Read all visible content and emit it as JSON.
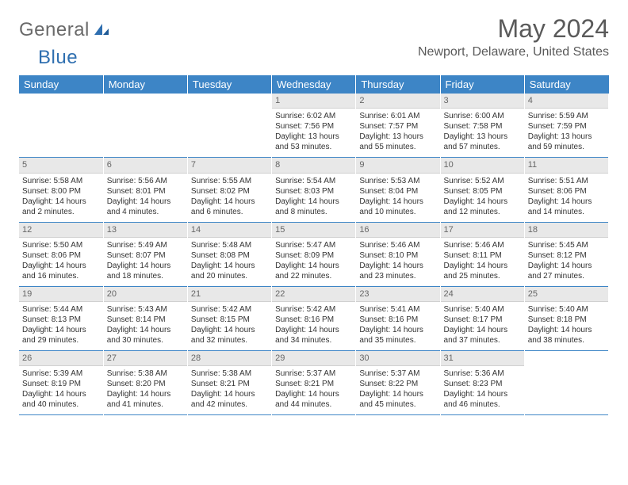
{
  "logo": {
    "general": "General",
    "blue": "Blue"
  },
  "title": "May 2024",
  "location": "Newport, Delaware, United States",
  "weekdays": [
    "Sunday",
    "Monday",
    "Tuesday",
    "Wednesday",
    "Thursday",
    "Friday",
    "Saturday"
  ],
  "colors": {
    "header_bg": "#3d85c6",
    "header_text": "#ffffff",
    "daynum_bg": "#e8e8e8",
    "row_border": "#3d85c6",
    "logo_general": "#6a6a6a",
    "logo_blue": "#2f6fb0",
    "title_color": "#5a5a5a"
  },
  "weeks": [
    [
      {
        "empty": true
      },
      {
        "empty": true
      },
      {
        "empty": true
      },
      {
        "day": "1",
        "sunrise": "Sunrise: 6:02 AM",
        "sunset": "Sunset: 7:56 PM",
        "daylight": "Daylight: 13 hours and 53 minutes."
      },
      {
        "day": "2",
        "sunrise": "Sunrise: 6:01 AM",
        "sunset": "Sunset: 7:57 PM",
        "daylight": "Daylight: 13 hours and 55 minutes."
      },
      {
        "day": "3",
        "sunrise": "Sunrise: 6:00 AM",
        "sunset": "Sunset: 7:58 PM",
        "daylight": "Daylight: 13 hours and 57 minutes."
      },
      {
        "day": "4",
        "sunrise": "Sunrise: 5:59 AM",
        "sunset": "Sunset: 7:59 PM",
        "daylight": "Daylight: 13 hours and 59 minutes."
      }
    ],
    [
      {
        "day": "5",
        "sunrise": "Sunrise: 5:58 AM",
        "sunset": "Sunset: 8:00 PM",
        "daylight": "Daylight: 14 hours and 2 minutes."
      },
      {
        "day": "6",
        "sunrise": "Sunrise: 5:56 AM",
        "sunset": "Sunset: 8:01 PM",
        "daylight": "Daylight: 14 hours and 4 minutes."
      },
      {
        "day": "7",
        "sunrise": "Sunrise: 5:55 AM",
        "sunset": "Sunset: 8:02 PM",
        "daylight": "Daylight: 14 hours and 6 minutes."
      },
      {
        "day": "8",
        "sunrise": "Sunrise: 5:54 AM",
        "sunset": "Sunset: 8:03 PM",
        "daylight": "Daylight: 14 hours and 8 minutes."
      },
      {
        "day": "9",
        "sunrise": "Sunrise: 5:53 AM",
        "sunset": "Sunset: 8:04 PM",
        "daylight": "Daylight: 14 hours and 10 minutes."
      },
      {
        "day": "10",
        "sunrise": "Sunrise: 5:52 AM",
        "sunset": "Sunset: 8:05 PM",
        "daylight": "Daylight: 14 hours and 12 minutes."
      },
      {
        "day": "11",
        "sunrise": "Sunrise: 5:51 AM",
        "sunset": "Sunset: 8:06 PM",
        "daylight": "Daylight: 14 hours and 14 minutes."
      }
    ],
    [
      {
        "day": "12",
        "sunrise": "Sunrise: 5:50 AM",
        "sunset": "Sunset: 8:06 PM",
        "daylight": "Daylight: 14 hours and 16 minutes."
      },
      {
        "day": "13",
        "sunrise": "Sunrise: 5:49 AM",
        "sunset": "Sunset: 8:07 PM",
        "daylight": "Daylight: 14 hours and 18 minutes."
      },
      {
        "day": "14",
        "sunrise": "Sunrise: 5:48 AM",
        "sunset": "Sunset: 8:08 PM",
        "daylight": "Daylight: 14 hours and 20 minutes."
      },
      {
        "day": "15",
        "sunrise": "Sunrise: 5:47 AM",
        "sunset": "Sunset: 8:09 PM",
        "daylight": "Daylight: 14 hours and 22 minutes."
      },
      {
        "day": "16",
        "sunrise": "Sunrise: 5:46 AM",
        "sunset": "Sunset: 8:10 PM",
        "daylight": "Daylight: 14 hours and 23 minutes."
      },
      {
        "day": "17",
        "sunrise": "Sunrise: 5:46 AM",
        "sunset": "Sunset: 8:11 PM",
        "daylight": "Daylight: 14 hours and 25 minutes."
      },
      {
        "day": "18",
        "sunrise": "Sunrise: 5:45 AM",
        "sunset": "Sunset: 8:12 PM",
        "daylight": "Daylight: 14 hours and 27 minutes."
      }
    ],
    [
      {
        "day": "19",
        "sunrise": "Sunrise: 5:44 AM",
        "sunset": "Sunset: 8:13 PM",
        "daylight": "Daylight: 14 hours and 29 minutes."
      },
      {
        "day": "20",
        "sunrise": "Sunrise: 5:43 AM",
        "sunset": "Sunset: 8:14 PM",
        "daylight": "Daylight: 14 hours and 30 minutes."
      },
      {
        "day": "21",
        "sunrise": "Sunrise: 5:42 AM",
        "sunset": "Sunset: 8:15 PM",
        "daylight": "Daylight: 14 hours and 32 minutes."
      },
      {
        "day": "22",
        "sunrise": "Sunrise: 5:42 AM",
        "sunset": "Sunset: 8:16 PM",
        "daylight": "Daylight: 14 hours and 34 minutes."
      },
      {
        "day": "23",
        "sunrise": "Sunrise: 5:41 AM",
        "sunset": "Sunset: 8:16 PM",
        "daylight": "Daylight: 14 hours and 35 minutes."
      },
      {
        "day": "24",
        "sunrise": "Sunrise: 5:40 AM",
        "sunset": "Sunset: 8:17 PM",
        "daylight": "Daylight: 14 hours and 37 minutes."
      },
      {
        "day": "25",
        "sunrise": "Sunrise: 5:40 AM",
        "sunset": "Sunset: 8:18 PM",
        "daylight": "Daylight: 14 hours and 38 minutes."
      }
    ],
    [
      {
        "day": "26",
        "sunrise": "Sunrise: 5:39 AM",
        "sunset": "Sunset: 8:19 PM",
        "daylight": "Daylight: 14 hours and 40 minutes."
      },
      {
        "day": "27",
        "sunrise": "Sunrise: 5:38 AM",
        "sunset": "Sunset: 8:20 PM",
        "daylight": "Daylight: 14 hours and 41 minutes."
      },
      {
        "day": "28",
        "sunrise": "Sunrise: 5:38 AM",
        "sunset": "Sunset: 8:21 PM",
        "daylight": "Daylight: 14 hours and 42 minutes."
      },
      {
        "day": "29",
        "sunrise": "Sunrise: 5:37 AM",
        "sunset": "Sunset: 8:21 PM",
        "daylight": "Daylight: 14 hours and 44 minutes."
      },
      {
        "day": "30",
        "sunrise": "Sunrise: 5:37 AM",
        "sunset": "Sunset: 8:22 PM",
        "daylight": "Daylight: 14 hours and 45 minutes."
      },
      {
        "day": "31",
        "sunrise": "Sunrise: 5:36 AM",
        "sunset": "Sunset: 8:23 PM",
        "daylight": "Daylight: 14 hours and 46 minutes."
      },
      {
        "empty": true
      }
    ]
  ]
}
